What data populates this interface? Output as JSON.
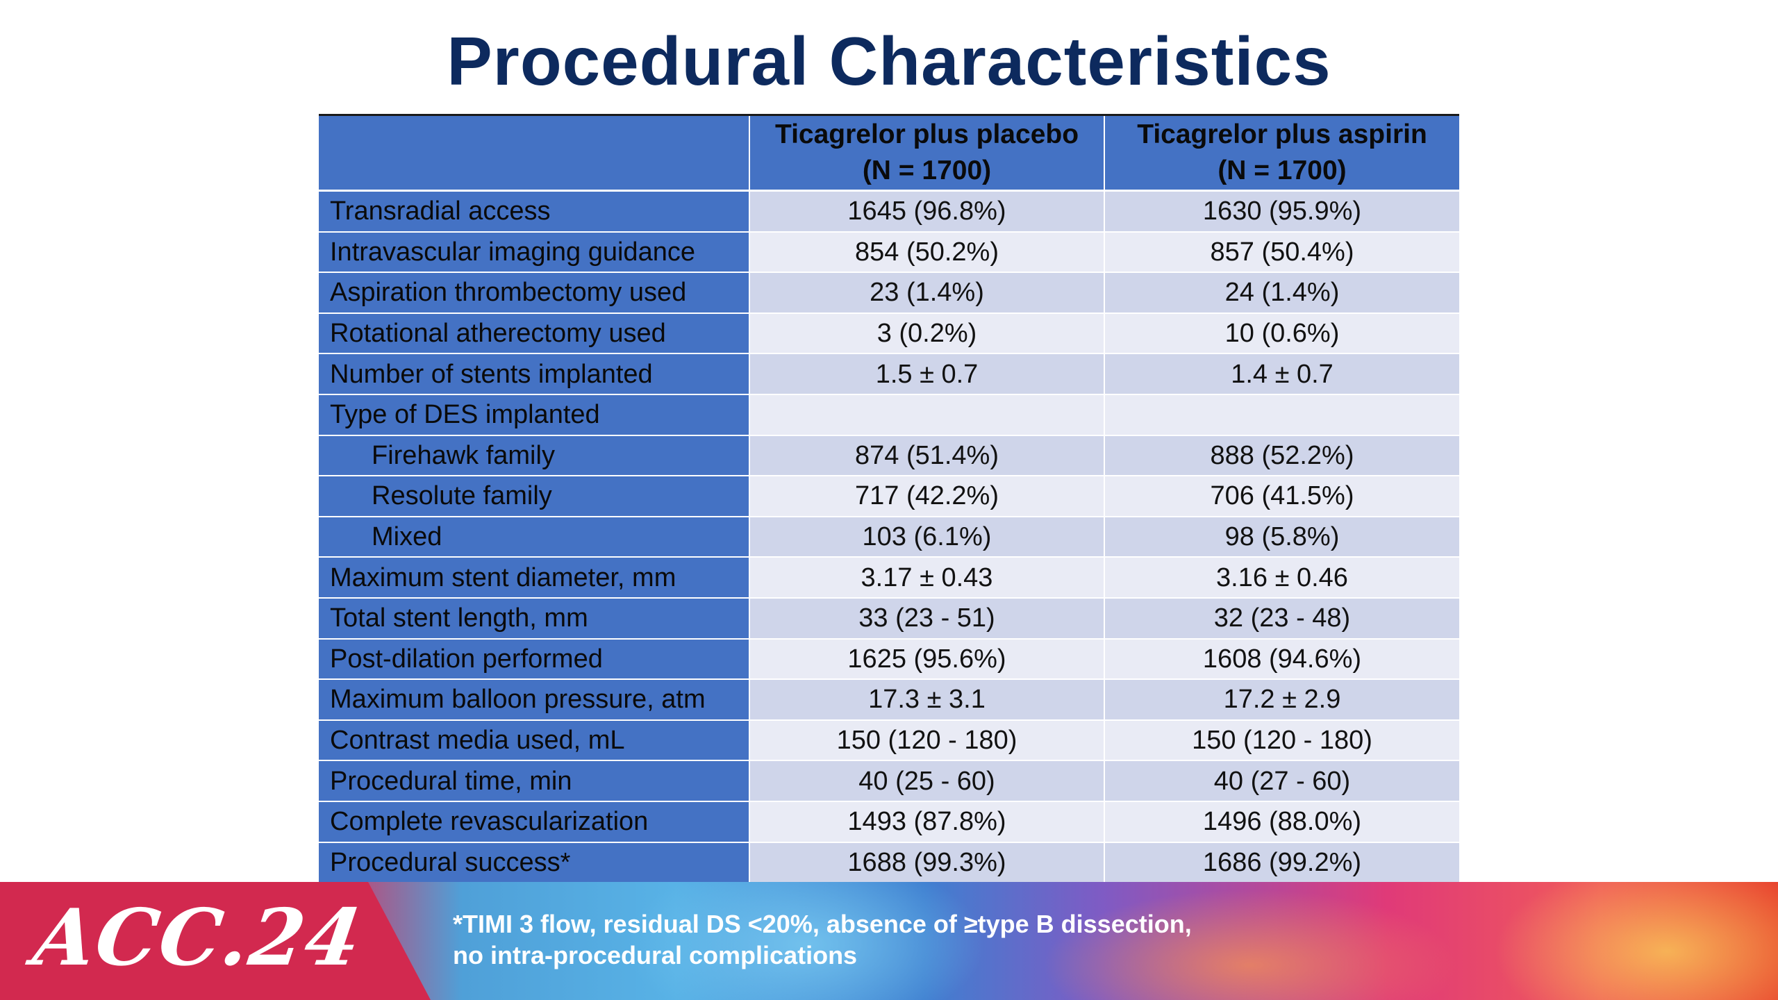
{
  "title": "Procedural Characteristics",
  "table": {
    "headers": [
      {
        "line1": "",
        "line2": ""
      },
      {
        "line1": "Ticagrelor plus placebo",
        "line2": "(N = 1700)"
      },
      {
        "line1": "Ticagrelor plus aspirin",
        "line2": "(N = 1700)"
      }
    ],
    "rows": [
      {
        "label": "Transradial access",
        "indent": false,
        "placebo": "1645 (96.8%)",
        "aspirin": "1630 (95.9%)"
      },
      {
        "label": "Intravascular imaging guidance",
        "indent": false,
        "placebo": "854 (50.2%)",
        "aspirin": "857 (50.4%)"
      },
      {
        "label": "Aspiration thrombectomy used",
        "indent": false,
        "placebo": "23 (1.4%)",
        "aspirin": "24 (1.4%)"
      },
      {
        "label": "Rotational atherectomy used",
        "indent": false,
        "placebo": "3 (0.2%)",
        "aspirin": "10 (0.6%)"
      },
      {
        "label": "Number of stents implanted",
        "indent": false,
        "placebo": "1.5 ± 0.7",
        "aspirin": "1.4 ± 0.7"
      },
      {
        "label": "Type of DES implanted",
        "indent": false,
        "placebo": "",
        "aspirin": ""
      },
      {
        "label": "Firehawk family",
        "indent": true,
        "placebo": "874 (51.4%)",
        "aspirin": "888 (52.2%)"
      },
      {
        "label": "Resolute family",
        "indent": true,
        "placebo": "717 (42.2%)",
        "aspirin": "706 (41.5%)"
      },
      {
        "label": "Mixed",
        "indent": true,
        "placebo": "103 (6.1%)",
        "aspirin": "98 (5.8%)"
      },
      {
        "label": "Maximum stent diameter, mm",
        "indent": false,
        "placebo": "3.17 ± 0.43",
        "aspirin": "3.16 ± 0.46"
      },
      {
        "label": "Total stent length, mm",
        "indent": false,
        "placebo": "33 (23 - 51)",
        "aspirin": "32 (23 - 48)"
      },
      {
        "label": "Post-dilation performed",
        "indent": false,
        "placebo": "1625 (95.6%)",
        "aspirin": "1608 (94.6%)"
      },
      {
        "label": "Maximum balloon pressure, atm",
        "indent": false,
        "placebo": "17.3 ± 3.1",
        "aspirin": "17.2 ± 2.9"
      },
      {
        "label": "Contrast media used, mL",
        "indent": false,
        "placebo": "150 (120 - 180)",
        "aspirin": "150 (120 - 180)"
      },
      {
        "label": "Procedural time, min",
        "indent": false,
        "placebo": "40 (25 - 60)",
        "aspirin": "40 (27 - 60)"
      },
      {
        "label": "Complete revascularization",
        "indent": false,
        "placebo": "1493 (87.8%)",
        "aspirin": "1496 (88.0%)"
      },
      {
        "label": "Procedural success*",
        "indent": false,
        "placebo": "1688 (99.3%)",
        "aspirin": "1686 (99.2%)"
      }
    ]
  },
  "footer": {
    "logo_text": "ACC.24",
    "footnote_line1": "*TIMI 3 flow, residual DS <20%, absence of ≥type B dissection,",
    "footnote_line2": "no intra-procedural complications"
  },
  "colors": {
    "title": "#0d2a5e",
    "header_bg": "#4472c4",
    "row_band_dark": "#cfd5ea",
    "row_band_light": "#e9ebf5",
    "banner_left": "#d2294f"
  }
}
